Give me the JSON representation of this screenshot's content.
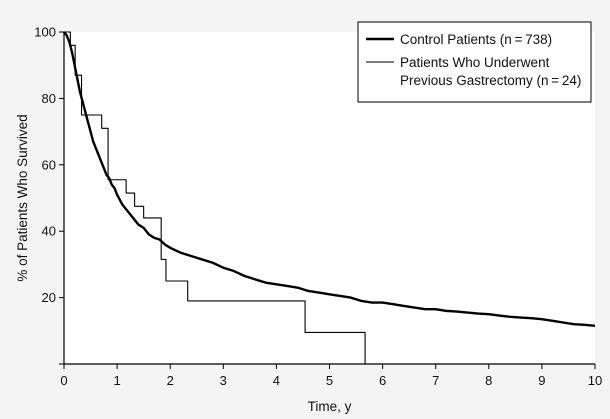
{
  "chart_data": {
    "type": "line",
    "xlabel": "Time, y",
    "ylabel": "% of Patients Who Survived",
    "xlim": [
      0,
      10
    ],
    "ylim": [
      0,
      100
    ],
    "xticks": [
      0,
      1,
      2,
      3,
      4,
      5,
      6,
      7,
      8,
      9,
      10
    ],
    "yticks": [
      20,
      40,
      60,
      80,
      100
    ],
    "grid": false,
    "legend_position": "top-right",
    "series": [
      {
        "name": "Control Patients (n = 738)",
        "style": "thick",
        "color": "#000000",
        "x": [
          0,
          0.05,
          0.1,
          0.15,
          0.2,
          0.25,
          0.3,
          0.35,
          0.4,
          0.45,
          0.5,
          0.55,
          0.6,
          0.65,
          0.7,
          0.75,
          0.8,
          0.85,
          0.9,
          0.95,
          1.0,
          1.1,
          1.2,
          1.3,
          1.4,
          1.5,
          1.6,
          1.7,
          1.8,
          1.9,
          2.0,
          2.2,
          2.4,
          2.6,
          2.8,
          3.0,
          3.2,
          3.4,
          3.6,
          3.8,
          4.0,
          4.2,
          4.4,
          4.6,
          4.8,
          5.0,
          5.2,
          5.4,
          5.6,
          5.8,
          6.0,
          6.2,
          6.4,
          6.6,
          6.8,
          7.0,
          7.2,
          7.4,
          7.6,
          7.8,
          8.0,
          8.2,
          8.4,
          8.6,
          8.8,
          9.0,
          9.2,
          9.4,
          9.6,
          9.8,
          10.0
        ],
        "y": [
          100,
          99,
          97,
          94,
          90,
          86,
          82,
          79,
          76,
          73,
          70,
          67,
          65,
          63,
          61,
          59,
          57,
          56,
          54,
          53,
          51,
          48,
          46,
          44,
          42,
          41,
          39,
          38,
          37.5,
          36,
          35,
          33.5,
          32.5,
          31.5,
          30.5,
          29,
          28,
          26.5,
          25.5,
          24.5,
          24,
          23.5,
          23,
          22,
          21.5,
          21,
          20.5,
          20,
          19,
          18.5,
          18.5,
          18,
          17.5,
          17,
          16.5,
          16.5,
          16,
          15.8,
          15.5,
          15.2,
          15,
          14.6,
          14.2,
          14,
          13.8,
          13.5,
          13,
          12.5,
          12,
          11.8,
          11.5
        ]
      },
      {
        "name": "Patients Who Underwent Previous Gastrectomy (n = 24)",
        "style": "thin-step",
        "color": "#000000",
        "x": [
          0,
          0.12,
          0.21,
          0.33,
          0.54,
          0.71,
          0.83,
          1.17,
          1.33,
          1.5,
          1.83,
          1.92,
          2.0,
          2.33,
          4.54,
          5.67
        ],
        "y": [
          100,
          96,
          87,
          75,
          75,
          71,
          55.5,
          51.5,
          47.5,
          44,
          31.5,
          25,
          25,
          19,
          9.5,
          0
        ]
      }
    ]
  },
  "legend": {
    "entries": [
      {
        "lines": [
          "Control Patients (n = 738)"
        ]
      },
      {
        "lines": [
          "Patients Who Underwent",
          "Previous Gastrectomy (n = 24)"
        ]
      }
    ]
  }
}
